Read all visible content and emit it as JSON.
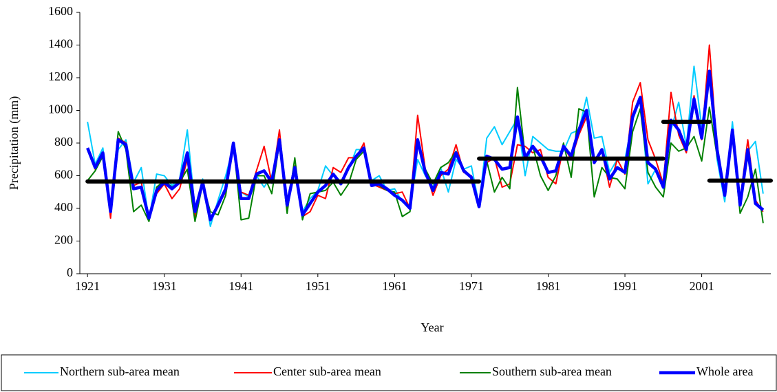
{
  "chart_data": {
    "type": "line",
    "x_label": "Year",
    "y_label": "Precipitation (mm)",
    "x": [
      1921,
      1922,
      1923,
      1924,
      1925,
      1926,
      1927,
      1928,
      1929,
      1930,
      1931,
      1932,
      1933,
      1934,
      1935,
      1936,
      1937,
      1938,
      1939,
      1940,
      1941,
      1942,
      1943,
      1944,
      1945,
      1946,
      1947,
      1948,
      1949,
      1950,
      1951,
      1952,
      1953,
      1954,
      1955,
      1956,
      1957,
      1958,
      1959,
      1960,
      1961,
      1962,
      1963,
      1964,
      1965,
      1966,
      1967,
      1968,
      1969,
      1970,
      1971,
      1972,
      1973,
      1974,
      1975,
      1976,
      1977,
      1978,
      1979,
      1980,
      1981,
      1982,
      1983,
      1984,
      1985,
      1986,
      1987,
      1988,
      1989,
      1990,
      1991,
      1992,
      1993,
      1994,
      1995,
      1996,
      1997,
      1998,
      1999,
      2000,
      2001,
      2002,
      2003,
      2004,
      2005,
      2006,
      2007,
      2008,
      2009
    ],
    "series": [
      {
        "name": "Northern sub-area mean",
        "color": "#00ccff",
        "width": 2,
        "values": [
          930,
          670,
          770,
          410,
          760,
          820,
          560,
          650,
          330,
          610,
          600,
          540,
          580,
          880,
          400,
          580,
          290,
          450,
          600,
          780,
          500,
          470,
          600,
          530,
          600,
          780,
          440,
          620,
          380,
          460,
          510,
          660,
          600,
          560,
          640,
          760,
          760,
          570,
          600,
          510,
          520,
          440,
          410,
          700,
          600,
          530,
          650,
          500,
          700,
          640,
          660,
          420,
          830,
          900,
          790,
          870,
          950,
          600,
          840,
          800,
          760,
          750,
          750,
          860,
          880,
          1080,
          830,
          840,
          620,
          700,
          700,
          940,
          1070,
          550,
          640,
          520,
          880,
          1050,
          780,
          1270,
          900,
          1240,
          700,
          440,
          930,
          430,
          750,
          810,
          490
        ]
      },
      {
        "name": "Center sub-area mean",
        "color": "#ff0000",
        "width": 2,
        "values": [
          760,
          640,
          740,
          340,
          830,
          800,
          540,
          560,
          330,
          490,
          550,
          460,
          520,
          700,
          350,
          560,
          330,
          420,
          500,
          800,
          500,
          480,
          630,
          780,
          560,
          880,
          400,
          660,
          350,
          380,
          480,
          460,
          650,
          620,
          710,
          710,
          800,
          550,
          530,
          510,
          490,
          500,
          400,
          970,
          640,
          480,
          600,
          640,
          790,
          620,
          600,
          420,
          680,
          710,
          530,
          550,
          790,
          780,
          740,
          760,
          590,
          550,
          780,
          700,
          850,
          960,
          700,
          750,
          530,
          700,
          610,
          1050,
          1170,
          820,
          700,
          550,
          1110,
          850,
          740,
          1090,
          820,
          1400,
          760,
          500,
          850,
          450,
          820,
          450,
          380
        ]
      },
      {
        "name": "Southern sub-area mean",
        "color": "#008000",
        "width": 2,
        "values": [
          570,
          630,
          720,
          400,
          870,
          760,
          380,
          420,
          320,
          530,
          570,
          530,
          560,
          640,
          320,
          550,
          380,
          360,
          480,
          800,
          330,
          340,
          600,
          600,
          490,
          800,
          370,
          710,
          330,
          490,
          500,
          510,
          560,
          480,
          550,
          700,
          750,
          560,
          540,
          510,
          500,
          350,
          380,
          800,
          640,
          550,
          650,
          680,
          750,
          640,
          590,
          410,
          690,
          500,
          590,
          520,
          1140,
          720,
          780,
          600,
          510,
          600,
          800,
          590,
          1010,
          990,
          470,
          650,
          590,
          580,
          520,
          870,
          1010,
          620,
          530,
          470,
          800,
          750,
          770,
          840,
          690,
          1020,
          720,
          500,
          850,
          370,
          470,
          640,
          310
        ]
      },
      {
        "name": "Whole area",
        "color": "#0000ff",
        "width": 4.5,
        "values": [
          770,
          650,
          740,
          380,
          820,
          790,
          520,
          530,
          340,
          510,
          560,
          520,
          560,
          740,
          380,
          560,
          330,
          420,
          520,
          800,
          460,
          460,
          610,
          630,
          560,
          820,
          420,
          650,
          360,
          430,
          500,
          540,
          610,
          550,
          650,
          720,
          770,
          540,
          550,
          520,
          480,
          450,
          400,
          820,
          620,
          510,
          620,
          610,
          740,
          630,
          590,
          410,
          720,
          700,
          640,
          650,
          960,
          710,
          780,
          720,
          620,
          630,
          780,
          720,
          880,
          1000,
          680,
          760,
          580,
          650,
          620,
          960,
          1080,
          680,
          640,
          530,
          940,
          880,
          760,
          1070,
          830,
          1240,
          760,
          480,
          880,
          420,
          760,
          430,
          390
        ]
      }
    ],
    "mean_segments": {
      "color": "#000000",
      "items": [
        {
          "x": [
            1921,
            1972
          ],
          "value": 565
        },
        {
          "x": [
            1972,
            1996
          ],
          "value": 705
        },
        {
          "x": [
            1996,
            2002
          ],
          "value": 930
        },
        {
          "x": [
            2002,
            2010
          ],
          "value": 570
        }
      ]
    },
    "xlim": [
      1920,
      2010
    ],
    "xticks": [
      1921,
      1931,
      1941,
      1951,
      1961,
      1971,
      1981,
      1991,
      2001
    ],
    "ylim": [
      0,
      1600
    ],
    "yticks": [
      0,
      200,
      400,
      600,
      800,
      1000,
      1200,
      1400,
      1600
    ],
    "grid": false,
    "legend": "bottom"
  }
}
